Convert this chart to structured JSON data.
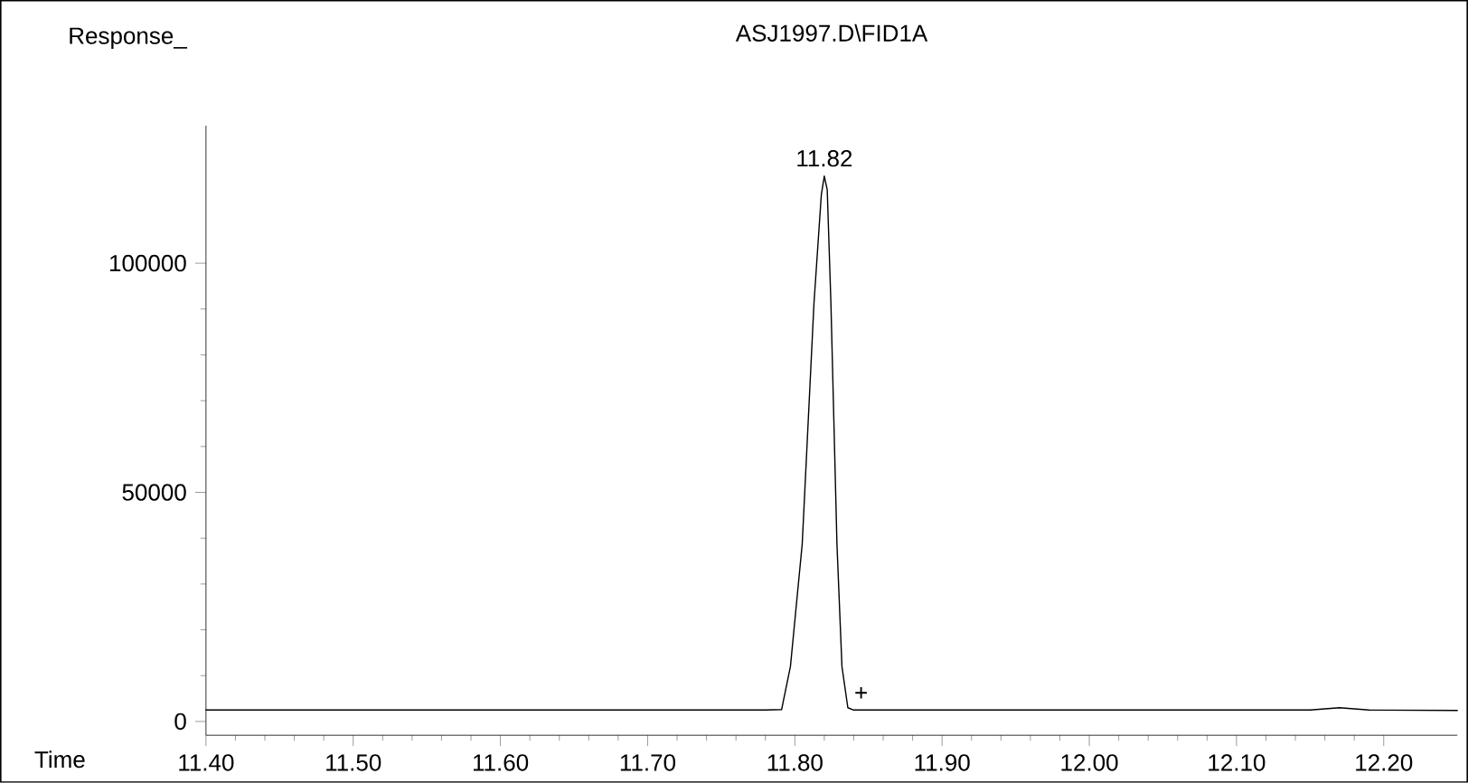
{
  "chart_data": {
    "type": "line",
    "title": "ASJ1997.D\\FID1A",
    "xlabel": "Time",
    "ylabel": "Response_",
    "x": [
      11.4,
      11.6,
      11.78,
      11.791,
      11.797,
      11.805,
      11.813,
      11.818,
      11.82,
      11.822,
      11.8245,
      11.8286,
      11.832,
      11.836,
      11.84,
      12.15,
      12.17,
      12.19,
      12.25
    ],
    "values": [
      2500,
      2500,
      2500,
      2600,
      12000,
      38700,
      91300,
      115000,
      119000,
      116000,
      91300,
      38700,
      12000,
      3000,
      2500,
      2500,
      3000,
      2500,
      2400
    ],
    "color": "#000000",
    "xlim": [
      11.4,
      12.25
    ],
    "ylim": [
      -3000,
      130000
    ],
    "xticks": [
      {
        "value": 11.4,
        "label": "11.40"
      },
      {
        "value": 11.5,
        "label": "11.50"
      },
      {
        "value": 11.6,
        "label": "11.60"
      },
      {
        "value": 11.7,
        "label": "11.70"
      },
      {
        "value": 11.8,
        "label": "11.80"
      },
      {
        "value": 11.9,
        "label": "11.90"
      },
      {
        "value": 12.0,
        "label": "12.00"
      },
      {
        "value": 12.1,
        "label": "12.10"
      },
      {
        "value": 12.2,
        "label": "12.20"
      }
    ],
    "yticks": [
      0,
      50000,
      100000
    ],
    "annotations": [
      {
        "text": "11.82",
        "x": 11.82,
        "y": 119000
      },
      {
        "text": "+",
        "x": 11.845,
        "y": 2500
      }
    ],
    "grid": false,
    "marker": "none",
    "line_style": "solid"
  }
}
